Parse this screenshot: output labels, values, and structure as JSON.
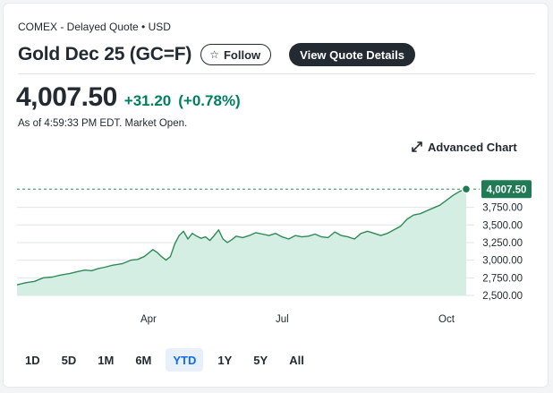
{
  "header": {
    "meta": "COMEX - Delayed Quote • USD",
    "title": "Gold Dec 25 (GC=F)",
    "follow_label": "Follow",
    "view_quote_label": "View Quote Details"
  },
  "quote": {
    "price": "4,007.50",
    "change": "+31.20",
    "change_pct": "(+0.78%)",
    "as_of": "As of 4:59:33 PM EDT. Market Open."
  },
  "advanced_chart_label": "Advanced Chart",
  "range_buttons": [
    {
      "label": "1D"
    },
    {
      "label": "5D"
    },
    {
      "label": "1M"
    },
    {
      "label": "6M"
    },
    {
      "label": "YTD"
    },
    {
      "label": "1Y"
    },
    {
      "label": "5Y"
    },
    {
      "label": "All"
    }
  ],
  "selected_range": "YTD",
  "colors": {
    "positive": "#008060",
    "line": "#2e8b57",
    "fill": "#d4eee3",
    "active_range_bg": "#e8f1fb",
    "active_range_text": "#0f69ff"
  },
  "chart_data": {
    "type": "area",
    "last_price_label": "4,007.50",
    "last_price": 4007.5,
    "ylim": [
      2500,
      4100
    ],
    "xlim": [
      0,
      205
    ],
    "y_ticks": [
      {
        "value": 3750,
        "label": "3,750.00"
      },
      {
        "value": 3500,
        "label": "3,500.00"
      },
      {
        "value": 3250,
        "label": "3,250.00"
      },
      {
        "value": 3000,
        "label": "3,000.00"
      },
      {
        "value": 2750,
        "label": "2,750.00"
      },
      {
        "value": 2500,
        "label": "2,500.00"
      }
    ],
    "x_ticks": [
      {
        "day": 60,
        "label": "Apr"
      },
      {
        "day": 121,
        "label": "Jul"
      },
      {
        "day": 196,
        "label": "Oct"
      }
    ],
    "series": [
      {
        "points": [
          [
            0,
            2650
          ],
          [
            4,
            2680
          ],
          [
            8,
            2700
          ],
          [
            12,
            2750
          ],
          [
            16,
            2760
          ],
          [
            20,
            2790
          ],
          [
            24,
            2810
          ],
          [
            28,
            2840
          ],
          [
            31,
            2860
          ],
          [
            34,
            2850
          ],
          [
            37,
            2880
          ],
          [
            40,
            2900
          ],
          [
            44,
            2930
          ],
          [
            48,
            2950
          ],
          [
            52,
            3000
          ],
          [
            55,
            3010
          ],
          [
            58,
            3050
          ],
          [
            60,
            3100
          ],
          [
            62,
            3150
          ],
          [
            64,
            3110
          ],
          [
            66,
            3050
          ],
          [
            68,
            3000
          ],
          [
            70,
            3050
          ],
          [
            72,
            3230
          ],
          [
            74,
            3350
          ],
          [
            76,
            3410
          ],
          [
            78,
            3300
          ],
          [
            80,
            3380
          ],
          [
            82,
            3340
          ],
          [
            84,
            3310
          ],
          [
            86,
            3330
          ],
          [
            88,
            3280
          ],
          [
            90,
            3350
          ],
          [
            92,
            3430
          ],
          [
            94,
            3300
          ],
          [
            96,
            3250
          ],
          [
            98,
            3290
          ],
          [
            100,
            3340
          ],
          [
            103,
            3320
          ],
          [
            106,
            3350
          ],
          [
            109,
            3390
          ],
          [
            112,
            3370
          ],
          [
            115,
            3350
          ],
          [
            118,
            3380
          ],
          [
            121,
            3330
          ],
          [
            124,
            3300
          ],
          [
            127,
            3350
          ],
          [
            130,
            3330
          ],
          [
            133,
            3340
          ],
          [
            136,
            3370
          ],
          [
            139,
            3330
          ],
          [
            142,
            3320
          ],
          [
            145,
            3400
          ],
          [
            148,
            3350
          ],
          [
            151,
            3330
          ],
          [
            154,
            3300
          ],
          [
            157,
            3380
          ],
          [
            160,
            3410
          ],
          [
            163,
            3380
          ],
          [
            166,
            3350
          ],
          [
            169,
            3380
          ],
          [
            172,
            3430
          ],
          [
            175,
            3480
          ],
          [
            178,
            3580
          ],
          [
            181,
            3640
          ],
          [
            184,
            3660
          ],
          [
            187,
            3700
          ],
          [
            190,
            3740
          ],
          [
            193,
            3780
          ],
          [
            196,
            3850
          ],
          [
            199,
            3920
          ],
          [
            202,
            3976
          ],
          [
            205,
            4007.5
          ]
        ]
      }
    ]
  }
}
